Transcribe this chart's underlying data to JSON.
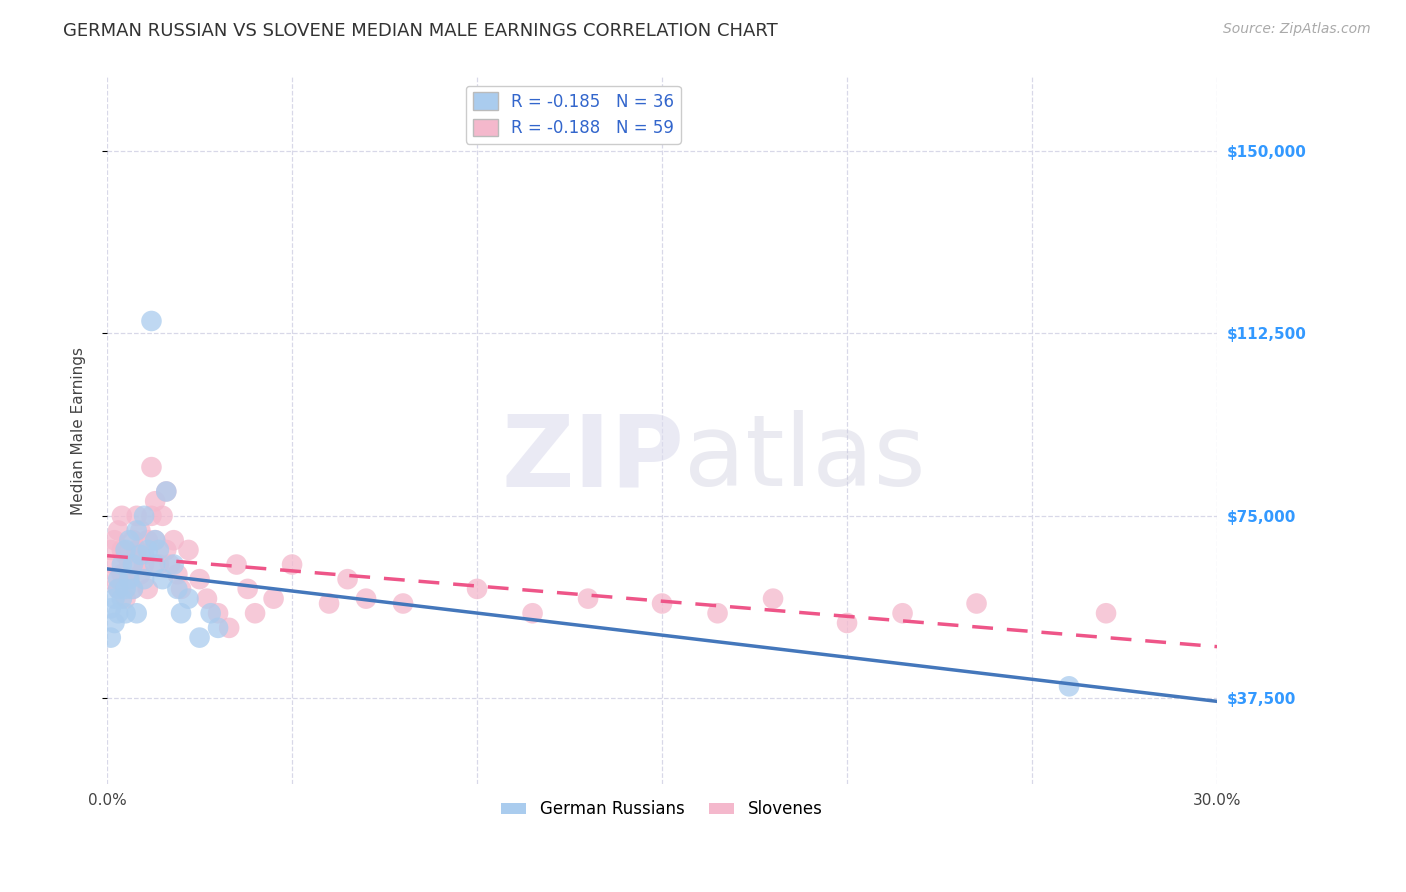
{
  "title": "GERMAN RUSSIAN VS SLOVENE MEDIAN MALE EARNINGS CORRELATION CHART",
  "source": "Source: ZipAtlas.com",
  "ylabel": "Median Male Earnings",
  "xlim": [
    0.0,
    0.3
  ],
  "ylim": [
    20000,
    165000
  ],
  "yticks": [
    37500,
    75000,
    112500,
    150000
  ],
  "ytick_labels": [
    "$37,500",
    "$75,000",
    "$112,500",
    "$150,000"
  ],
  "xticks": [
    0.0,
    0.05,
    0.1,
    0.15,
    0.2,
    0.25,
    0.3
  ],
  "xtick_labels": [
    "0.0%",
    "",
    "",
    "",
    "",
    "",
    "30.0%"
  ],
  "background_color": "#ffffff",
  "grid_color": "#d8d8e8",
  "german_russian_color": "#aaccee",
  "slovene_color": "#f4b8cc",
  "regression_german_color": "#4477bb",
  "regression_slovene_color": "#ee5588",
  "german_russian_label": "German Russians",
  "slovene_label": "Slovenes",
  "R_german": -0.185,
  "N_german": 36,
  "R_slovene": -0.188,
  "N_slovene": 59,
  "german_russian_x": [
    0.001,
    0.001,
    0.002,
    0.002,
    0.003,
    0.003,
    0.003,
    0.004,
    0.004,
    0.005,
    0.005,
    0.005,
    0.006,
    0.006,
    0.007,
    0.007,
    0.008,
    0.008,
    0.009,
    0.01,
    0.01,
    0.011,
    0.012,
    0.013,
    0.013,
    0.014,
    0.015,
    0.016,
    0.018,
    0.019,
    0.02,
    0.022,
    0.025,
    0.028,
    0.03,
    0.26
  ],
  "german_russian_y": [
    56000,
    50000,
    58000,
    53000,
    62000,
    55000,
    60000,
    65000,
    58000,
    68000,
    55000,
    60000,
    70000,
    62000,
    65000,
    60000,
    72000,
    55000,
    67000,
    75000,
    62000,
    68000,
    115000,
    70000,
    65000,
    68000,
    62000,
    80000,
    65000,
    60000,
    55000,
    58000,
    50000,
    55000,
    52000,
    40000
  ],
  "slovene_x": [
    0.001,
    0.001,
    0.002,
    0.002,
    0.003,
    0.003,
    0.004,
    0.004,
    0.004,
    0.005,
    0.005,
    0.006,
    0.006,
    0.007,
    0.007,
    0.008,
    0.008,
    0.009,
    0.009,
    0.01,
    0.01,
    0.011,
    0.011,
    0.012,
    0.012,
    0.013,
    0.013,
    0.014,
    0.015,
    0.016,
    0.016,
    0.017,
    0.018,
    0.019,
    0.02,
    0.022,
    0.025,
    0.027,
    0.03,
    0.033,
    0.035,
    0.038,
    0.04,
    0.045,
    0.05,
    0.06,
    0.065,
    0.07,
    0.08,
    0.1,
    0.115,
    0.13,
    0.15,
    0.165,
    0.18,
    0.2,
    0.215,
    0.235,
    0.27
  ],
  "slovene_y": [
    68000,
    62000,
    70000,
    65000,
    60000,
    72000,
    63000,
    75000,
    68000,
    58000,
    67000,
    62000,
    65000,
    70000,
    60000,
    68000,
    75000,
    63000,
    72000,
    67000,
    65000,
    70000,
    60000,
    85000,
    75000,
    70000,
    78000,
    65000,
    75000,
    80000,
    68000,
    65000,
    70000,
    63000,
    60000,
    68000,
    62000,
    58000,
    55000,
    52000,
    65000,
    60000,
    55000,
    58000,
    65000,
    57000,
    62000,
    58000,
    57000,
    60000,
    55000,
    58000,
    57000,
    55000,
    58000,
    53000,
    55000,
    57000,
    55000
  ],
  "title_fontsize": 13,
  "axis_label_fontsize": 11,
  "tick_fontsize": 11,
  "legend_fontsize": 12,
  "source_fontsize": 10
}
